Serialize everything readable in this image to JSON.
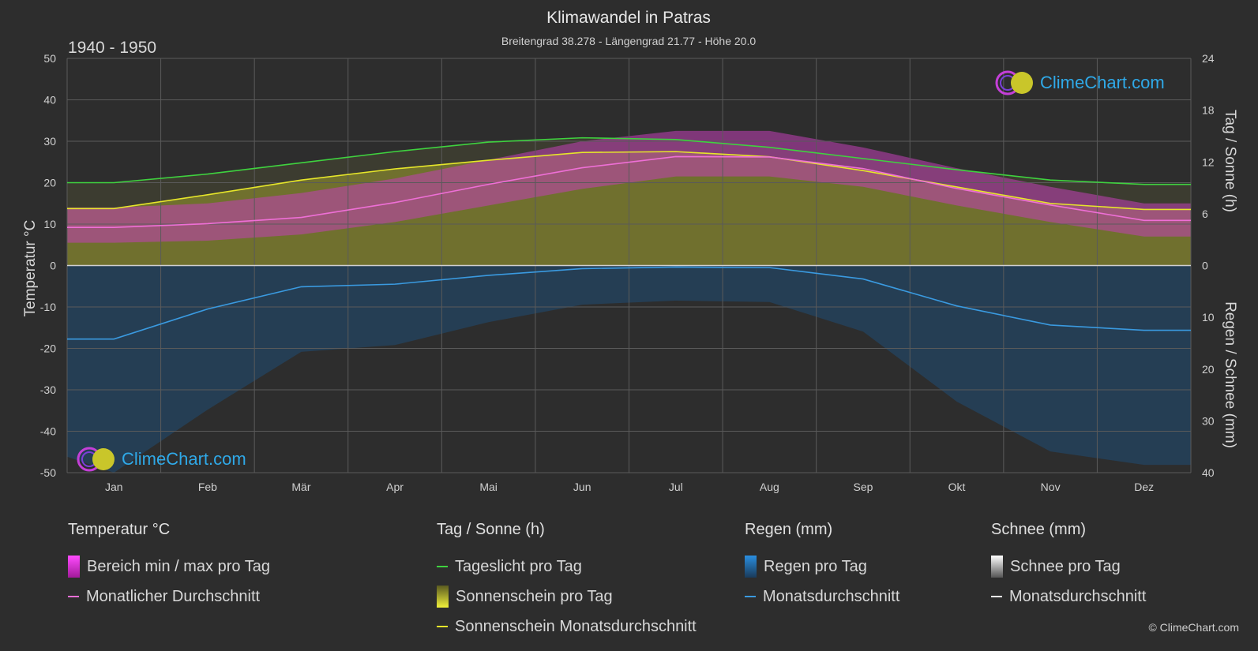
{
  "title": "Klimawandel in Patras",
  "subtitle": "Breitengrad 38.278 - Längengrad 21.77 - Höhe 20.0",
  "period": "1940 - 1950",
  "logo_text": "ClimeChart.com",
  "copyright": "© ClimeChart.com",
  "colors": {
    "background": "#2d2d2d",
    "daylight": "#3fd23f",
    "sunshine_avg": "#e6e62a",
    "sunshine_fill": "#8a8a2a",
    "temp_avg": "#ee6fd6",
    "temp_range": "#c23fb8",
    "rain": "#2a82c8",
    "rain_avg": "#3a9ae0",
    "snow_avg": "#ffffff"
  },
  "legend": {
    "temperature": {
      "heading": "Temperatur °C",
      "range_label": "Bereich min / max pro Tag",
      "avg_label": "Monatlicher Durchschnitt"
    },
    "sun": {
      "heading": "Tag / Sonne (h)",
      "daylight_label": "Tageslicht pro Tag",
      "sunshine_label": "Sonnenschein pro Tag",
      "sunshine_avg_label": "Sonnenschein Monatsdurchschnitt"
    },
    "rain": {
      "heading": "Regen (mm)",
      "rain_label": "Regen pro Tag",
      "avg_label": "Monatsdurchschnitt"
    },
    "snow": {
      "heading": "Schnee (mm)",
      "snow_label": "Schnee pro Tag",
      "avg_label": "Monatsdurchschnitt"
    }
  },
  "chart_data": {
    "type": "line",
    "x_label": "",
    "categories": [
      "Jan",
      "Feb",
      "Mär",
      "Apr",
      "Mai",
      "Jun",
      "Jul",
      "Aug",
      "Sep",
      "Okt",
      "Nov",
      "Dez"
    ],
    "axes": {
      "left": {
        "label": "Temperatur °C",
        "min": -50,
        "max": 50,
        "ticks": [
          50,
          40,
          30,
          20,
          10,
          0,
          -10,
          -20,
          -30,
          -40,
          -50
        ]
      },
      "right_top": {
        "label": "Tag / Sonne (h)",
        "min": 0,
        "max": 24,
        "ticks": [
          24,
          18,
          12,
          6,
          0
        ]
      },
      "right_bottom": {
        "label": "Regen / Schnee (mm)",
        "min": 0,
        "max": 40,
        "ticks": [
          0,
          10,
          20,
          30,
          40
        ]
      }
    },
    "grid": true,
    "series": [
      {
        "name": "Tageslicht pro Tag",
        "axis": "right_top",
        "values": [
          9.6,
          10.6,
          11.9,
          13.2,
          14.3,
          14.8,
          14.6,
          13.7,
          12.4,
          11.1,
          9.9,
          9.4
        ]
      },
      {
        "name": "Sonnenschein Monatsdurchschnitt",
        "axis": "right_top",
        "values": [
          6.6,
          8.2,
          9.9,
          11.2,
          12.2,
          13.1,
          13.2,
          12.6,
          11.0,
          9.1,
          7.2,
          6.5
        ]
      },
      {
        "name": "Monatlicher Durchschnitt",
        "axis": "left",
        "values": [
          9.2,
          10.1,
          11.6,
          15.2,
          19.6,
          23.6,
          26.3,
          26.2,
          23.4,
          18.6,
          14.6,
          10.9
        ]
      },
      {
        "name": "Regen Monatsdurchschnitt",
        "axis": "right_bottom",
        "values": [
          14.2,
          8.4,
          4.1,
          3.6,
          1.9,
          0.6,
          0.3,
          0.4,
          2.6,
          7.8,
          11.5,
          12.5
        ]
      },
      {
        "name": "Schnee Monatsdurchschnitt",
        "axis": "right_bottom",
        "values": [
          0,
          0,
          0,
          0,
          0,
          0,
          0,
          0,
          0,
          0,
          0,
          0
        ]
      }
    ],
    "temperature_range_monthly": {
      "min": [
        5.5,
        6.0,
        7.5,
        10.5,
        14.5,
        18.5,
        21.5,
        21.5,
        19.0,
        14.5,
        10.5,
        7.0
      ],
      "max": [
        14.0,
        15.0,
        17.5,
        21.0,
        25.5,
        30.0,
        32.5,
        32.5,
        28.5,
        23.5,
        19.0,
        15.0
      ]
    }
  }
}
